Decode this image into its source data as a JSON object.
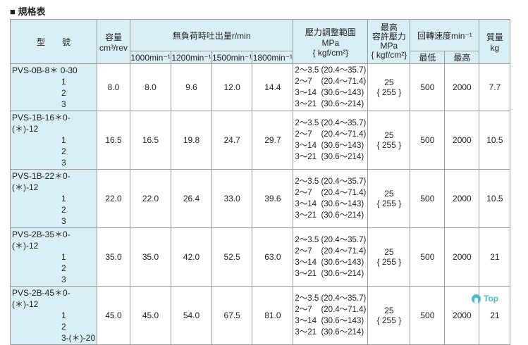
{
  "title": "■ 規格表",
  "header": {
    "model": "型　　號",
    "capacity": "容量",
    "capacity_unit": "cm³/rev",
    "flow": "無負荷時吐出量r/min",
    "flow_cols": [
      "1000min⁻¹",
      "1200min⁻¹",
      "1500min⁻¹",
      "1800min⁻¹"
    ],
    "pressure_range": "壓力調整範圍",
    "pressure_range_unit": "MPa",
    "pressure_range_unit2": "{ kgf/cm²}",
    "max_pressure": "最高",
    "max_pressure2": "容許壓力",
    "max_pressure_unit": "MPa",
    "max_pressure_unit2": "{ kgf/cm²}",
    "speed": "回轉速度min⁻¹",
    "speed_min": "最低",
    "speed_max": "最高",
    "mass": "質量",
    "mass_unit": "kg"
  },
  "rows": [
    {
      "model": [
        "PVS-0B-8＊ 0-30",
        "1",
        "2",
        "3"
      ],
      "capacity": "8.0",
      "flow": [
        "8.0",
        "9.6",
        "12.0",
        "14.4"
      ],
      "ranges": [
        "2～3.5 (20.4～35.7)",
        "2～7    (20.4～71.4)",
        "3～14  (30.6～143)",
        "3～21  (30.6～214)"
      ],
      "max_p": "25",
      "max_p2": "{ 255 }",
      "min": "500",
      "max": "2000",
      "mass": "7.7"
    },
    {
      "model": [
        "PVS-1B-16＊0-(＊)-12",
        "1",
        "2",
        "3"
      ],
      "capacity": "16.5",
      "flow": [
        "16.5",
        "19.8",
        "24.7",
        "29.7"
      ],
      "ranges": [
        "2～3.5 (20.4～35.7)",
        "2～7    (20.4～71.4)",
        "3～14  (30.6～143)",
        "3～21  (30.6～214)"
      ],
      "max_p": "25",
      "max_p2": "{ 255 }",
      "min": "500",
      "max": "2000",
      "mass": "10.5"
    },
    {
      "model": [
        "PVS-1B-22＊0-(＊)-12",
        "1",
        "2",
        "3"
      ],
      "capacity": "22.0",
      "flow": [
        "22.0",
        "26.4",
        "33.0",
        "39.6"
      ],
      "ranges": [
        "2～3.5 (20.4～35.7)",
        "2～7    (20.4～71.4)",
        "3～14  (30.6～143)",
        "3～21  (30.6～214)"
      ],
      "max_p": "25",
      "max_p2": "{ 255 }",
      "min": "500",
      "max": "2000",
      "mass": "10.5"
    },
    {
      "model": [
        "PVS-2B-35＊0-(＊)-12",
        "1",
        "2",
        "3"
      ],
      "capacity": "35.0",
      "flow": [
        "35.0",
        "42.0",
        "52.5",
        "63.0"
      ],
      "ranges": [
        "2～3.5 (20.4～35.7)",
        "2～7    (20.4～71.4)",
        "3～14  (30.6～143)",
        "3～21  (30.6～214)"
      ],
      "max_p": "25",
      "max_p2": "{ 255 }",
      "min": "500",
      "max": "2000",
      "mass": "21"
    },
    {
      "model": [
        "PVS-2B-45＊0-(＊)-12",
        "1",
        "2",
        "3-(＊)-20"
      ],
      "capacity": "45.0",
      "flow": [
        "45.0",
        "54.0",
        "67.5",
        "81.0"
      ],
      "ranges": [
        "2～3.5 (20.4～35.7)",
        "2～7    (20.4～71.4)",
        "3～14  (30.6～143)",
        "3～21  (30.6～214)"
      ],
      "max_p": "25",
      "max_p2": "{ 255 }",
      "min": "500",
      "max": "2000",
      "mass": "21"
    }
  ],
  "top_link": "Top"
}
